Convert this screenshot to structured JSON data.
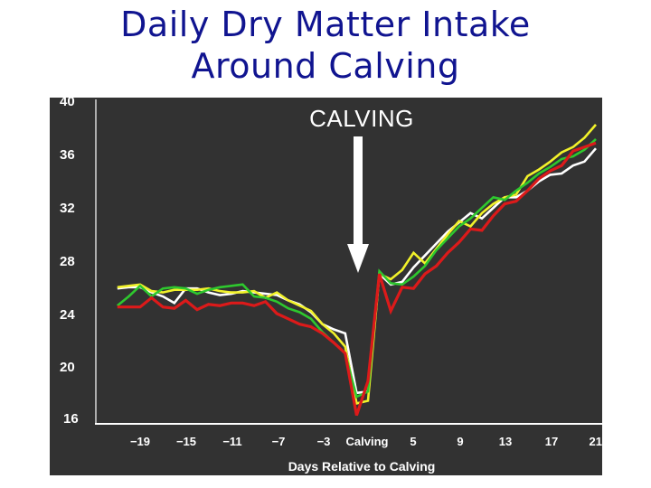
{
  "slide": {
    "title_line1": "Daily Dry Matter Intake",
    "title_line2": "Around Calving"
  },
  "chart_data": {
    "type": "line",
    "title": "Daily Dry Matter Intake Around Calving",
    "xlabel": "Days Relative to Calving",
    "ylabel": "",
    "xlim": [
      -21,
      21
    ],
    "ylim": [
      16,
      40
    ],
    "grid": false,
    "legend": null,
    "background": "#323232",
    "y_ticks": [
      "40",
      "36",
      "32",
      "28",
      "24",
      "20",
      "16"
    ],
    "x_ticks": [
      "−19",
      "−15",
      "−11",
      "−7",
      "−3",
      "Calving",
      "5",
      "9",
      "13",
      "17",
      "21"
    ],
    "annotation": {
      "text": "CALVING",
      "arrow": "down",
      "arrow_color": "#ffffff"
    },
    "x": [
      -21,
      -20,
      -19,
      -18,
      -17,
      -16,
      -15,
      -14,
      -13,
      -12,
      -11,
      -10,
      -9,
      -8,
      -7,
      -6,
      -5,
      -4,
      -3,
      -2,
      -1,
      0,
      1,
      2,
      3,
      4,
      5,
      6,
      7,
      8,
      9,
      10,
      11,
      12,
      13,
      14,
      15,
      16,
      17,
      18,
      19,
      20,
      21
    ],
    "series": [
      {
        "name": "White",
        "color": "#ffffff",
        "values": [
          25.9,
          26.0,
          26.0,
          25.6,
          25.3,
          24.8,
          25.9,
          25.9,
          25.6,
          25.4,
          25.5,
          25.7,
          25.6,
          25.5,
          25.4,
          25.0,
          24.7,
          24.1,
          23.2,
          22.8,
          22.5,
          18.0,
          18.1,
          27.0,
          26.2,
          26.4,
          27.5,
          28.4,
          29.3,
          30.2,
          30.9,
          31.6,
          31.2,
          32.0,
          32.8,
          32.8,
          33.3,
          34.0,
          34.5,
          34.6,
          35.2,
          35.5,
          36.5
        ]
      },
      {
        "name": "Yellow",
        "color": "#f2f22a",
        "values": [
          26.0,
          26.1,
          26.2,
          25.7,
          25.6,
          25.8,
          25.8,
          25.8,
          25.9,
          25.7,
          25.6,
          25.6,
          25.7,
          25.2,
          25.6,
          25.0,
          24.6,
          24.2,
          23.2,
          22.5,
          21.5,
          17.2,
          17.4,
          27.0,
          26.6,
          27.3,
          28.6,
          27.8,
          28.9,
          30.0,
          31.0,
          30.6,
          31.6,
          32.3,
          32.8,
          33.0,
          34.4,
          34.9,
          35.5,
          36.2,
          36.6,
          37.3,
          38.3
        ]
      },
      {
        "name": "Green",
        "color": "#2ec82e",
        "values": [
          24.6,
          25.3,
          26.1,
          25.3,
          25.9,
          26.0,
          25.9,
          25.5,
          25.8,
          26.0,
          26.1,
          26.2,
          25.3,
          25.2,
          24.9,
          24.4,
          24.1,
          23.6,
          22.6,
          21.8,
          21.0,
          17.7,
          18.1,
          27.2,
          26.3,
          26.2,
          26.8,
          27.6,
          28.8,
          29.7,
          30.6,
          31.2,
          32.0,
          32.8,
          32.6,
          33.3,
          33.9,
          34.6,
          35.1,
          35.7,
          35.9,
          36.4,
          37.2
        ]
      },
      {
        "name": "Red",
        "color": "#dc1a1a",
        "values": [
          24.5,
          24.5,
          24.5,
          25.2,
          24.5,
          24.4,
          25.0,
          24.3,
          24.7,
          24.6,
          24.8,
          24.8,
          24.6,
          24.9,
          24.0,
          23.6,
          23.2,
          23.0,
          22.5,
          21.8,
          21.0,
          16.3,
          18.9,
          27.0,
          24.2,
          26.0,
          25.9,
          27.0,
          27.6,
          28.6,
          29.4,
          30.4,
          30.3,
          31.4,
          32.3,
          32.5,
          33.3,
          34.2,
          34.8,
          35.2,
          36.3,
          36.6,
          36.9
        ]
      }
    ]
  }
}
